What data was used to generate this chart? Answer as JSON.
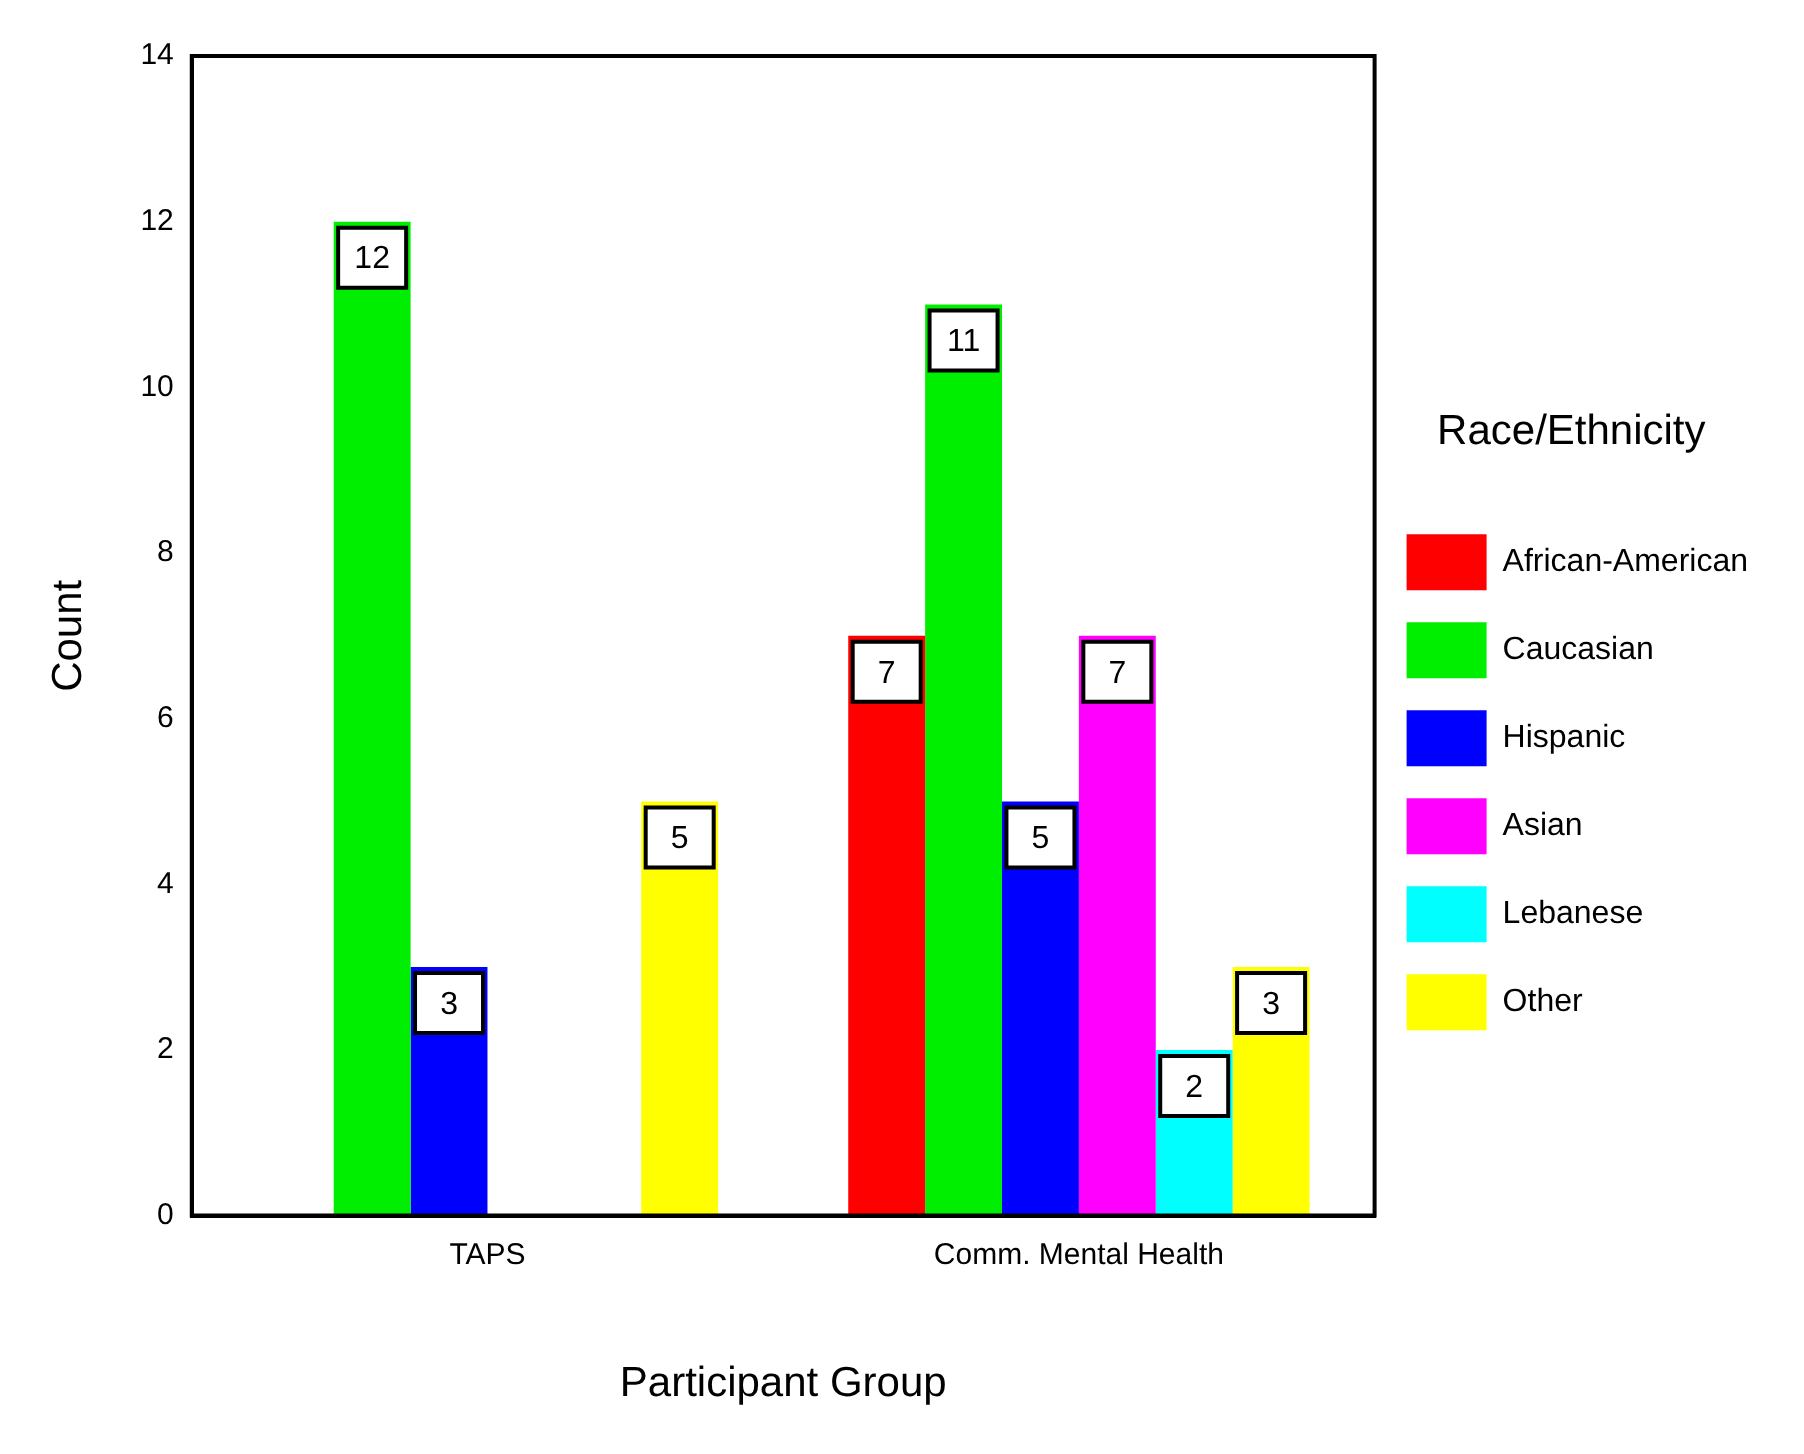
{
  "chart_data": {
    "type": "bar",
    "xlabel": "Participant Group",
    "ylabel": "Count",
    "legend_title": "Race/Ethnicity",
    "categories": [
      "TAPS",
      "Comm. Mental Health"
    ],
    "series": [
      {
        "name": "African-American",
        "color": "#ff0000",
        "values": [
          null,
          7
        ]
      },
      {
        "name": "Caucasian",
        "color": "#00ee00",
        "values": [
          12,
          11
        ]
      },
      {
        "name": "Hispanic",
        "color": "#0000ff",
        "values": [
          3,
          5
        ]
      },
      {
        "name": "Asian",
        "color": "#ff00ff",
        "values": [
          null,
          7
        ]
      },
      {
        "name": "Lebanese",
        "color": "#00ffff",
        "values": [
          null,
          2
        ]
      },
      {
        "name": "Other",
        "color": "#ffff00",
        "values": [
          5,
          3
        ]
      }
    ],
    "ylim": [
      0,
      14
    ],
    "yticks": [
      0,
      2,
      4,
      6,
      8,
      10,
      12,
      14
    ],
    "grid": false,
    "legend": "right",
    "data_labels": true
  }
}
